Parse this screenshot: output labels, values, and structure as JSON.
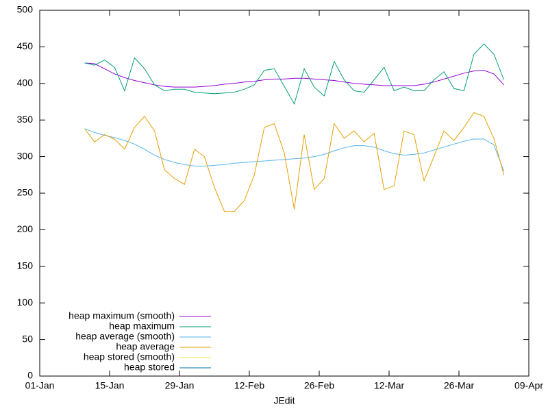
{
  "chart_data": {
    "type": "line",
    "xlabel": "JEdit",
    "x": [
      "10-Jan",
      "12-Jan",
      "14-Jan",
      "16-Jan",
      "18-Jan",
      "20-Jan",
      "22-Jan",
      "24-Jan",
      "26-Jan",
      "28-Jan",
      "30-Jan",
      "01-Feb",
      "03-Feb",
      "05-Feb",
      "07-Feb",
      "09-Feb",
      "11-Feb",
      "13-Feb",
      "15-Feb",
      "17-Feb",
      "19-Feb",
      "21-Feb",
      "23-Feb",
      "25-Feb",
      "27-Feb",
      "01-Mar",
      "03-Mar",
      "05-Mar",
      "07-Mar",
      "09-Mar",
      "11-Mar",
      "13-Mar",
      "15-Mar",
      "17-Mar",
      "19-Mar",
      "21-Mar",
      "23-Mar",
      "25-Mar",
      "27-Mar",
      "29-Mar",
      "31-Mar",
      "02-Apr",
      "04-Apr"
    ],
    "xlim": [
      "01-Jan",
      "09-Apr"
    ],
    "xticks": [
      "01-Jan",
      "15-Jan",
      "29-Jan",
      "12-Feb",
      "26-Feb",
      "12-Mar",
      "26-Mar",
      "09-Apr"
    ],
    "ylim": [
      0,
      500
    ],
    "yticks": [
      0,
      50,
      100,
      150,
      200,
      250,
      300,
      350,
      400,
      450,
      500
    ],
    "legend": "bottom-left",
    "series": [
      {
        "name": "heap maximum (smooth)",
        "color": "#9400d3",
        "values": [
          428,
          427,
          420,
          413,
          408,
          404,
          401,
          398,
          396,
          395,
          395,
          395,
          396,
          397,
          399,
          400,
          402,
          403,
          405,
          406,
          406,
          407,
          407,
          406,
          405,
          404,
          402,
          400,
          399,
          398,
          397,
          397,
          397,
          397,
          399,
          402,
          406,
          410,
          414,
          417,
          418,
          413,
          398
        ]
      },
      {
        "name": "heap maximum",
        "color": "#009e73",
        "values": [
          428,
          425,
          432,
          422,
          390,
          435,
          420,
          398,
          390,
          392,
          392,
          388,
          387,
          386,
          387,
          388,
          392,
          398,
          418,
          420,
          396,
          372,
          420,
          395,
          383,
          430,
          405,
          390,
          388,
          405,
          422,
          390,
          395,
          390,
          390,
          405,
          416,
          393,
          390,
          440,
          454,
          440,
          405
        ]
      },
      {
        "name": "heap average (smooth)",
        "color": "#56b4e9",
        "values": [
          338,
          333,
          329,
          326,
          322,
          317,
          310,
          302,
          296,
          292,
          289,
          287,
          287,
          288,
          289,
          291,
          292,
          293,
          294,
          295,
          296,
          297,
          298,
          300,
          303,
          308,
          312,
          315,
          315,
          313,
          308,
          304,
          302,
          303,
          305,
          309,
          313,
          317,
          321,
          324,
          324,
          316,
          280
        ]
      },
      {
        "name": "heap average",
        "color": "#e69f00",
        "values": [
          338,
          320,
          330,
          324,
          310,
          340,
          355,
          335,
          282,
          270,
          262,
          310,
          300,
          258,
          225,
          225,
          240,
          275,
          340,
          345,
          305,
          228,
          330,
          255,
          270,
          345,
          325,
          335,
          320,
          332,
          255,
          260,
          335,
          330,
          267,
          300,
          335,
          322,
          340,
          360,
          355,
          325,
          275
        ]
      },
      {
        "name": "heap stored (smooth)",
        "color": "#f0e442",
        "values": [
          null,
          null,
          null,
          null,
          null,
          null,
          null,
          null,
          null,
          null,
          null,
          null,
          null,
          null,
          null,
          null,
          null,
          null,
          null,
          null,
          null,
          null,
          null,
          null,
          null,
          null,
          null,
          null,
          null,
          null,
          null,
          null,
          null,
          null,
          null,
          null,
          null,
          null,
          null,
          null,
          null,
          null,
          null
        ]
      },
      {
        "name": "heap stored",
        "color": "#0072b2",
        "values": [
          null,
          null,
          null,
          null,
          null,
          null,
          null,
          null,
          null,
          null,
          null,
          null,
          null,
          null,
          null,
          null,
          null,
          null,
          null,
          null,
          null,
          null,
          null,
          null,
          null,
          null,
          null,
          null,
          null,
          null,
          null,
          null,
          null,
          null,
          null,
          null,
          null,
          null,
          null,
          null,
          null,
          null,
          null
        ]
      }
    ]
  }
}
